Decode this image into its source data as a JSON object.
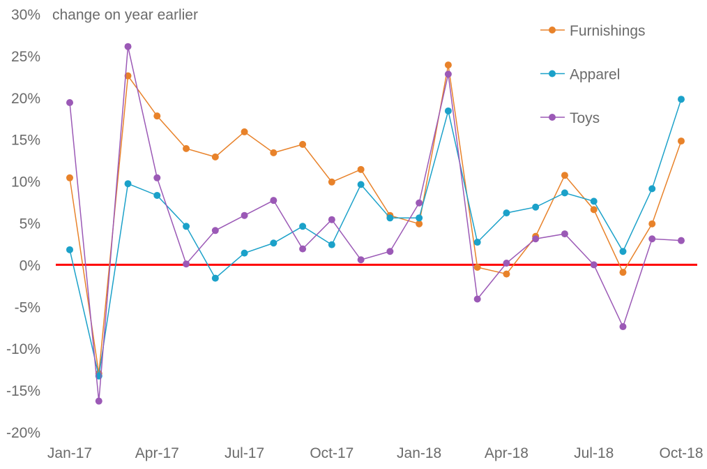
{
  "chart_data": {
    "type": "line",
    "title": "",
    "ylabel": "change on year earlier",
    "xlabel": "",
    "ylim": [
      -20,
      30
    ],
    "yticks": [
      -20,
      -15,
      -10,
      -5,
      0,
      5,
      10,
      15,
      20,
      25,
      30
    ],
    "ytick_labels": [
      "-20%",
      "-15%",
      "-10%",
      "-5%",
      "0%",
      "5%",
      "10%",
      "15%",
      "20%",
      "25%",
      "30%"
    ],
    "x": [
      "Jan-17",
      "Feb-17",
      "Mar-17",
      "Apr-17",
      "May-17",
      "Jun-17",
      "Jul-17",
      "Aug-17",
      "Sep-17",
      "Oct-17",
      "Nov-17",
      "Dec-17",
      "Jan-18",
      "Feb-18",
      "Mar-18",
      "Apr-18",
      "May-18",
      "Jun-18",
      "Jul-18",
      "Aug-18",
      "Sep-18",
      "Oct-18"
    ],
    "xtick_labels": [
      "Jan-17",
      "Apr-17",
      "Jul-17",
      "Oct-17",
      "Jan-18",
      "Apr-18",
      "Jul-18",
      "Oct-18"
    ],
    "xtick_indices": [
      0,
      3,
      6,
      9,
      12,
      15,
      18,
      21
    ],
    "zero_line_color": "#FF0000",
    "legend_position": "top-right",
    "series": [
      {
        "name": "Furnishings",
        "color": "#E8822A",
        "values": [
          10.4,
          -13,
          22.6,
          17.8,
          13.9,
          12.9,
          15.9,
          13.4,
          14.4,
          9.9,
          11.4,
          5.9,
          4.9,
          23.9,
          -0.3,
          -1.1,
          3.4,
          10.7,
          6.6,
          -0.9,
          4.9,
          14.8
        ]
      },
      {
        "name": "Apparel",
        "color": "#1BA1C9",
        "values": [
          1.8,
          -13.3,
          9.7,
          8.3,
          4.6,
          -1.6,
          1.4,
          2.6,
          4.6,
          2.4,
          9.6,
          5.6,
          5.6,
          18.4,
          2.7,
          6.2,
          6.9,
          8.6,
          7.6,
          1.6,
          9.1,
          19.8
        ]
      },
      {
        "name": "Toys",
        "color": "#9B59B6",
        "values": [
          19.4,
          -16.3,
          26.1,
          10.4,
          0.1,
          4.1,
          5.9,
          7.7,
          1.9,
          5.4,
          0.6,
          1.6,
          7.4,
          22.8,
          -4.1,
          0.2,
          3.1,
          3.7,
          0,
          -7.4,
          3.1,
          2.9
        ]
      }
    ]
  }
}
